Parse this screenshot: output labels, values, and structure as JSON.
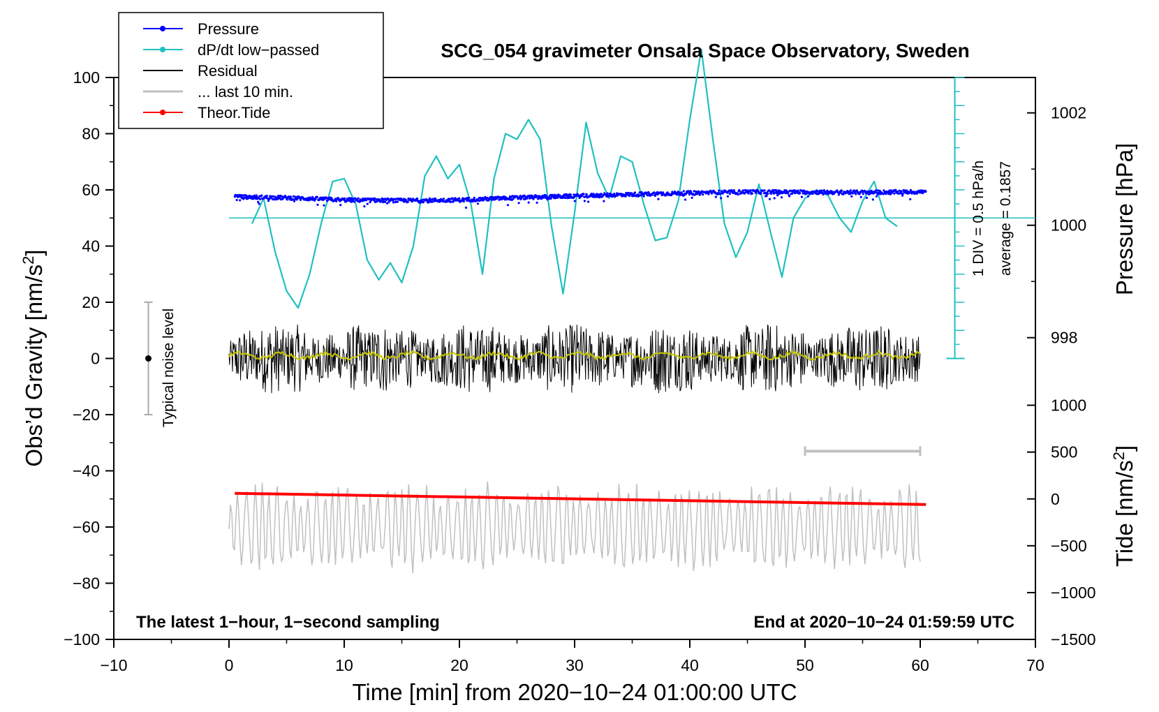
{
  "chart_data": {
    "type": "line",
    "title": "SCG_054 gravimeter Onsala Space Observatory, Sweden",
    "xlabel": "Time [min] from 2020−10−24 01:00:00 UTC",
    "ylabel_left": "Obs’d Gravity [nm/s2]",
    "ylabel_pressure": "Pressure [hPa]",
    "ylabel_tide": "Tide [nm/s2]",
    "xlim": [
      -10,
      70
    ],
    "ylim": [
      -100,
      100
    ],
    "x_ticks": [
      -10,
      0,
      10,
      20,
      30,
      40,
      50,
      60,
      70
    ],
    "x_tick_labels": [
      "−10",
      "0",
      "10",
      "20",
      "30",
      "40",
      "50",
      "60",
      "70"
    ],
    "y_ticks": [
      100,
      80,
      60,
      40,
      20,
      0,
      -20,
      -40,
      -60,
      -80,
      -100
    ],
    "y_tick_labels": [
      "100",
      "80",
      "60",
      "40",
      "20",
      "0",
      "−20",
      "−40",
      "−60",
      "−80",
      "−100"
    ],
    "pressure_axis": {
      "ticks": [
        1002,
        1000,
        998
      ],
      "tick_labels": [
        "1002",
        "1000",
        "998"
      ],
      "value_at_left_y60": 1000.63,
      "hpa_per_left_unit": 0.05
    },
    "tide_axis": {
      "ticks": [
        1000,
        500,
        0,
        -500,
        -1000,
        -1500
      ],
      "tick_labels": [
        "1000",
        "500",
        "0",
        "−500",
        "−1000",
        "−1500"
      ],
      "left_units_per_500": 16.67,
      "left_value_at_zero": -50
    },
    "legend": {
      "position": "top-left",
      "entries": [
        {
          "label": "Pressure",
          "color": "#0000ff",
          "marker": true
        },
        {
          "label": "dP/dt low−passed",
          "color": "#20c0c0",
          "marker": true
        },
        {
          "label": "Residual",
          "color": "#000000",
          "marker": false
        },
        {
          "label": "... last 10 min.",
          "color": "#c0c0c0",
          "marker": false
        },
        {
          "label": "Theor.Tide",
          "color": "#ff0000",
          "marker": true
        }
      ]
    },
    "series": [
      {
        "name": "Pressure",
        "color": "#0000ff",
        "x": [
          0.5,
          5,
          10,
          15,
          20,
          25,
          30,
          35,
          40,
          45,
          50,
          55,
          60.5
        ],
        "y": [
          57.5,
          57.2,
          56.4,
          56.2,
          56.4,
          57.2,
          57.8,
          58.4,
          58.9,
          59.3,
          59.2,
          59.1,
          59.3
        ]
      },
      {
        "name": "dP/dt low−passed",
        "color": "#20c0c0",
        "x": [
          2,
          3,
          4,
          5,
          6,
          7,
          8,
          9,
          10,
          11,
          12,
          13,
          14,
          15,
          16,
          17,
          18,
          19,
          20,
          21,
          22,
          23,
          24,
          25,
          26,
          27,
          28,
          29,
          30,
          31,
          32,
          33,
          34,
          35,
          36,
          37,
          38,
          39,
          40,
          41,
          42,
          43,
          44,
          45,
          46,
          47,
          48,
          49,
          50,
          51,
          52,
          53,
          54,
          55,
          56,
          57,
          58
        ],
        "y": [
          48,
          57,
          38,
          24,
          18,
          30,
          48,
          63,
          64,
          55,
          35,
          28,
          34,
          27,
          40,
          65,
          72,
          64,
          69,
          55,
          30,
          64,
          80,
          78,
          85,
          78,
          47,
          23,
          52,
          84,
          66,
          57,
          72,
          70,
          55,
          42,
          43,
          56,
          85,
          110,
          78,
          48,
          36,
          45,
          62,
          45,
          29,
          50,
          57,
          60,
          58,
          50,
          45,
          56,
          63,
          50,
          47
        ]
      },
      {
        "name": "Residual",
        "color": "#000000",
        "x": [
          0,
          60
        ],
        "y": [
          0,
          0
        ],
        "amplitude": 10
      },
      {
        "name": "Residual smoothed",
        "color": "#c8c800",
        "x": [
          0,
          60
        ],
        "y": [
          1,
          1
        ]
      },
      {
        "name": "... last 10 min.",
        "color": "#c0c0c0",
        "x": [
          0,
          60
        ],
        "y": [
          -60,
          -60
        ],
        "amplitude": 12
      },
      {
        "name": "Theor.Tide",
        "color": "#ff0000",
        "x": [
          0.5,
          60.5
        ],
        "y": [
          -48,
          -52
        ]
      }
    ],
    "dpdt_axis": {
      "label_div": "1 DIV = 0.5 hPa/h",
      "label_avg": "average = 0.1857",
      "baseline_y": 50,
      "axis_x": 63,
      "top_y": 100,
      "bottom_y": 0,
      "div_step": 5
    },
    "noise_bar": {
      "label": "Typical noise level",
      "x": -7,
      "y": 0,
      "half_range": 20
    },
    "window_bar": {
      "x_from": 50,
      "x_to": 60,
      "y": -33
    },
    "footer_left": "The latest 1−hour, 1−second sampling",
    "footer_right": "End at 2020−10−24 01:59:59 UTC"
  }
}
